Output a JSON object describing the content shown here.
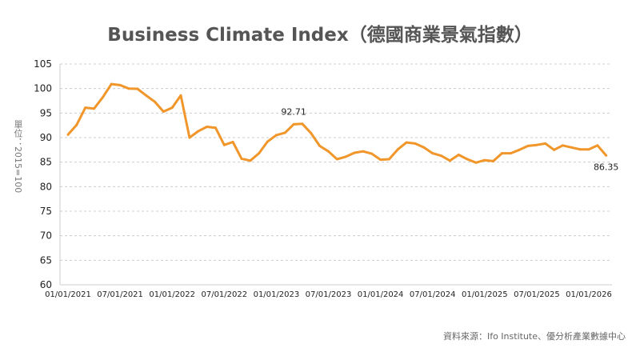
{
  "chart_data": {
    "type": "line",
    "title": "Business Climate Index（德國商業景氣指數）",
    "ylabel": "單位：2015=100",
    "xlabel": "",
    "source": "資料來源：Ifo Institute、優分析產業數據中心",
    "ylim": [
      60,
      105
    ],
    "yticks": [
      60,
      65,
      70,
      75,
      80,
      85,
      90,
      95,
      100,
      105
    ],
    "xlim": [
      "2021-01",
      "2026-03"
    ],
    "xticks": [
      "01/01/2021",
      "07/01/2021",
      "01/01/2022",
      "07/01/2022",
      "01/01/2023",
      "07/01/2023",
      "01/01/2024",
      "07/01/2024",
      "01/01/2025",
      "07/01/2025",
      "01/01/2026"
    ],
    "grid": "horizontal dashed",
    "color": "#F0962A",
    "start_month": "2021-01",
    "values": [
      90.6,
      92.6,
      96.1,
      95.9,
      98.2,
      100.9,
      100.7,
      100.0,
      99.95,
      98.6,
      97.3,
      95.3,
      96.1,
      98.6,
      90.0,
      91.3,
      92.2,
      92.0,
      88.5,
      89.1,
      85.7,
      85.3,
      86.8,
      89.2,
      90.5,
      91.0,
      92.71,
      92.8,
      90.9,
      88.3,
      87.2,
      85.6,
      86.1,
      86.9,
      87.2,
      86.7,
      85.5,
      85.6,
      87.6,
      89.0,
      88.8,
      88.0,
      86.8,
      86.3,
      85.3,
      86.5,
      85.6,
      84.9,
      85.4,
      85.2,
      86.8,
      86.8,
      87.5,
      88.3,
      88.5,
      88.8,
      87.5,
      88.4,
      88.0,
      87.6,
      87.6,
      88.4,
      86.35
    ],
    "data_labels": [
      {
        "index": 26,
        "text": "92.71"
      },
      {
        "index": 62,
        "text": "86.35"
      }
    ]
  }
}
